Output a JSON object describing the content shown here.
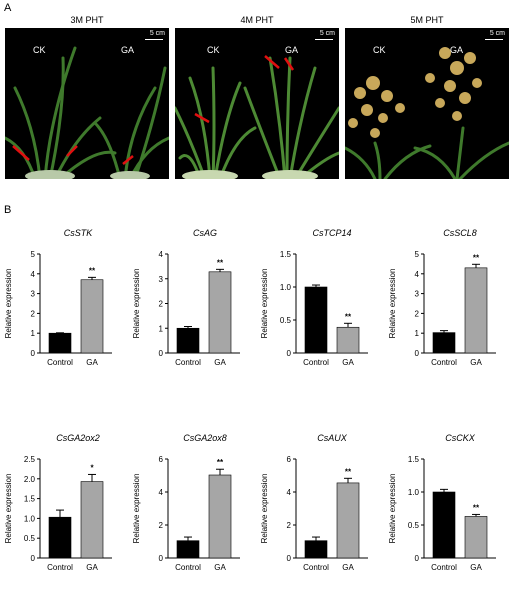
{
  "panel_a": {
    "letter": "A",
    "photos": [
      {
        "title": "3M PHT",
        "labels": [
          "CK",
          "GA"
        ],
        "scale": "5 cm"
      },
      {
        "title": "4M PHT",
        "labels": [
          "CK",
          "GA"
        ],
        "scale": "5 cm"
      },
      {
        "title": "5M PHT",
        "labels": [
          "CK",
          "GA"
        ],
        "scale": "5 cm"
      }
    ]
  },
  "panel_b": {
    "letter": "B"
  },
  "colors": {
    "control": "#000000",
    "ga": "#a6a6a6",
    "arrow": "#e01010"
  },
  "chart_data": [
    {
      "type": "bar",
      "title": "CsSTK",
      "ylabel": "Relative expression",
      "categories": [
        "Control",
        "GA"
      ],
      "values": [
        1.0,
        3.7
      ],
      "errors": [
        0.02,
        0.12
      ],
      "ylim": [
        0,
        5
      ],
      "yticks": [
        "0",
        "1",
        "2",
        "3",
        "4",
        "5"
      ],
      "sig": [
        "",
        "**"
      ]
    },
    {
      "type": "bar",
      "title": "CsAG",
      "ylabel": "Relative expression",
      "categories": [
        "Control",
        "GA"
      ],
      "values": [
        1.0,
        3.28
      ],
      "errors": [
        0.07,
        0.1
      ],
      "ylim": [
        0,
        4
      ],
      "yticks": [
        "0",
        "1",
        "2",
        "3",
        "4"
      ],
      "sig": [
        "",
        "**"
      ]
    },
    {
      "type": "bar",
      "title": "CsTCP14",
      "ylabel": "Relative expression",
      "categories": [
        "Control",
        "GA"
      ],
      "values": [
        1.0,
        0.39
      ],
      "errors": [
        0.03,
        0.06
      ],
      "ylim": [
        0,
        1.5
      ],
      "yticks": [
        "0",
        "0.5",
        "1.0",
        "1.5"
      ],
      "sig": [
        "",
        "**"
      ]
    },
    {
      "type": "bar",
      "title": "CsSCL8",
      "ylabel": "Relative expression",
      "categories": [
        "Control",
        "GA"
      ],
      "values": [
        1.03,
        4.3
      ],
      "errors": [
        0.1,
        0.18
      ],
      "ylim": [
        0,
        5
      ],
      "yticks": [
        "0",
        "1",
        "2",
        "3",
        "4",
        "5"
      ],
      "sig": [
        "",
        "**"
      ]
    },
    {
      "type": "bar",
      "title": "CsGA2ox2",
      "ylabel": "Relative expression",
      "categories": [
        "Control",
        "GA"
      ],
      "values": [
        1.03,
        1.93
      ],
      "errors": [
        0.18,
        0.18
      ],
      "ylim": [
        0,
        2.5
      ],
      "yticks": [
        "0",
        "0.5",
        "1.0",
        "1.5",
        "2.0",
        "2.5"
      ],
      "sig": [
        "",
        "*"
      ]
    },
    {
      "type": "bar",
      "title": "CsGA2ox8",
      "ylabel": "Relative expression",
      "categories": [
        "Control",
        "GA"
      ],
      "values": [
        1.05,
        5.03
      ],
      "errors": [
        0.22,
        0.35
      ],
      "ylim": [
        0,
        6
      ],
      "yticks": [
        "0",
        "2",
        "4",
        "6"
      ],
      "sig": [
        "",
        "**"
      ]
    },
    {
      "type": "bar",
      "title": "CsAUX",
      "ylabel": "Relative expression",
      "categories": [
        "Control",
        "GA"
      ],
      "values": [
        1.05,
        4.55
      ],
      "errors": [
        0.22,
        0.28
      ],
      "ylim": [
        0,
        6
      ],
      "yticks": [
        "0",
        "2",
        "4",
        "6"
      ],
      "sig": [
        "",
        "**"
      ]
    },
    {
      "type": "bar",
      "title": "CsCKX",
      "ylabel": "Relative expression",
      "categories": [
        "Control",
        "GA"
      ],
      "values": [
        1.0,
        0.63
      ],
      "errors": [
        0.04,
        0.03
      ],
      "ylim": [
        0,
        1.5
      ],
      "yticks": [
        "0",
        "0.5",
        "1.0",
        "1.5"
      ],
      "sig": [
        "",
        "**"
      ]
    }
  ]
}
